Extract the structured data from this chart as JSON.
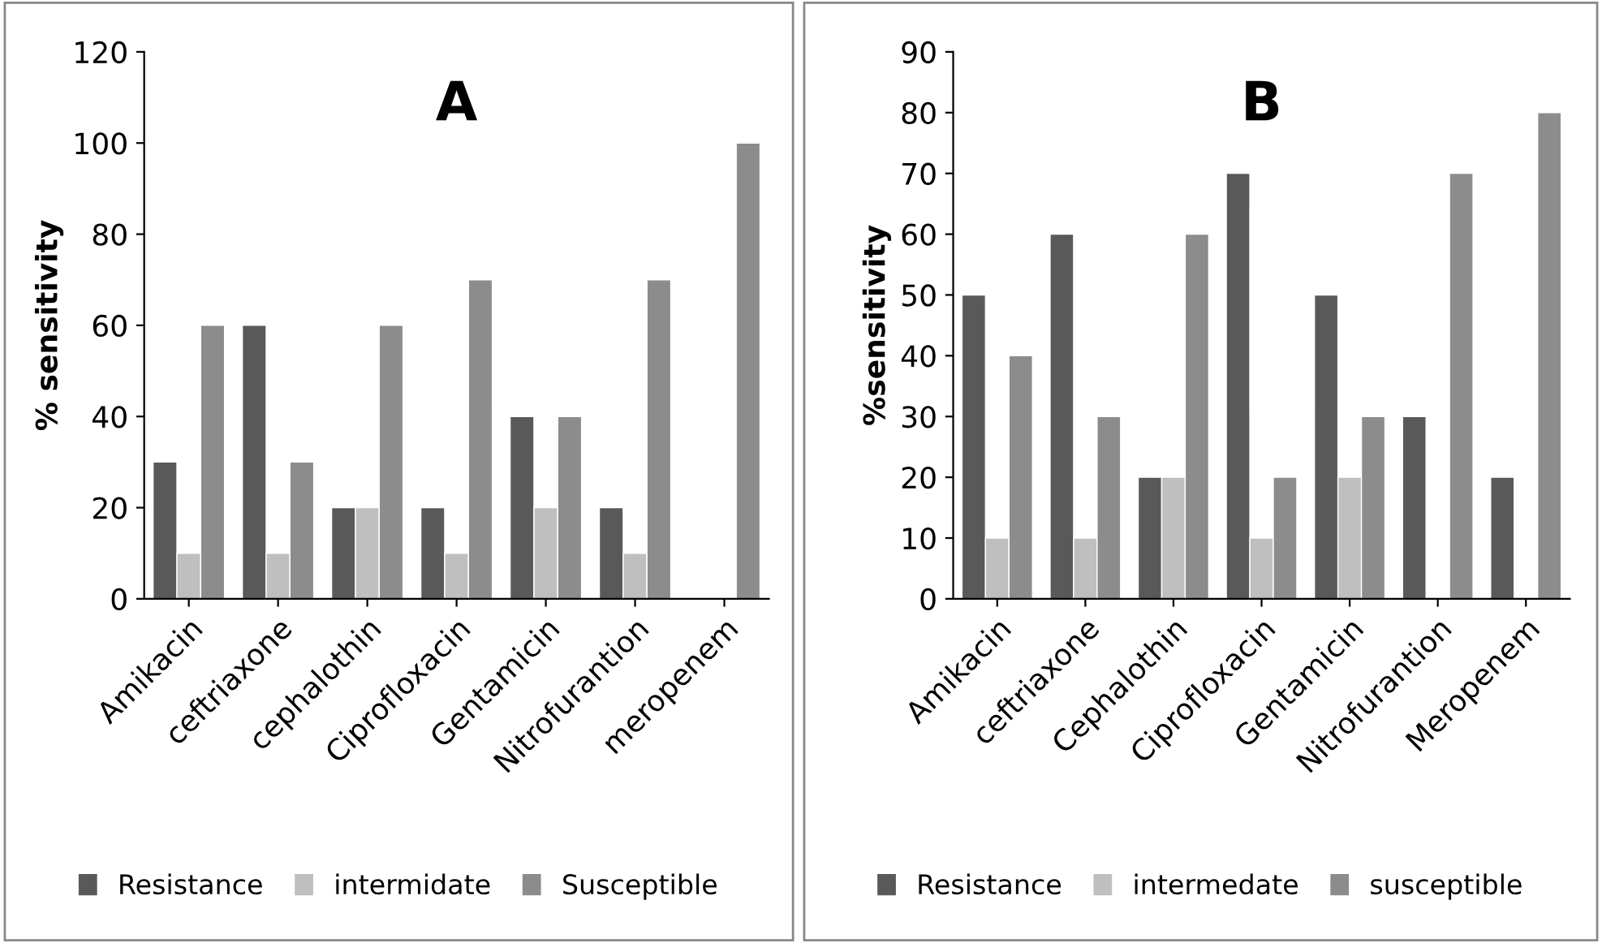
{
  "chart_data": [
    {
      "type": "bar",
      "title": "A",
      "ylabel": "% sensitivity",
      "categories": [
        "Amikacin",
        "ceftriaxone",
        "cephalothin",
        "Ciprofloxacin",
        "Gentamicin",
        "Nitrofurantion",
        "meropenem"
      ],
      "series": [
        {
          "name": "Resistance",
          "color": "#595959",
          "values": [
            30,
            60,
            20,
            20,
            40,
            20,
            null
          ]
        },
        {
          "name": "intermidate",
          "color": "#bfbfbf",
          "values": [
            10,
            10,
            20,
            10,
            20,
            10,
            null
          ]
        },
        {
          "name": "Susceptible",
          "color": "#8c8c8c",
          "values": [
            60,
            30,
            60,
            70,
            40,
            70,
            100
          ]
        }
      ],
      "ylim": [
        0,
        120
      ],
      "yticks": [
        0,
        20,
        40,
        60,
        80,
        100,
        120
      ],
      "grid": false,
      "legend": "bottom"
    },
    {
      "type": "bar",
      "title": "B",
      "ylabel": "%sensitivity",
      "categories": [
        "Amikacin",
        "ceftriaxone",
        "Cephalothin",
        "Ciprofloxacin",
        "Gentamicin",
        "Nitrofurantion",
        "Meropenem"
      ],
      "series": [
        {
          "name": "Resistance",
          "color": "#595959",
          "values": [
            50,
            60,
            20,
            70,
            50,
            30,
            20
          ]
        },
        {
          "name": "intermedate",
          "color": "#bfbfbf",
          "values": [
            10,
            10,
            20,
            10,
            20,
            null,
            null
          ]
        },
        {
          "name": "susceptible",
          "color": "#8c8c8c",
          "values": [
            40,
            30,
            60,
            20,
            30,
            70,
            80
          ]
        }
      ],
      "ylim": [
        0,
        90
      ],
      "yticks": [
        0,
        10,
        20,
        30,
        40,
        50,
        60,
        70,
        80,
        90
      ],
      "grid": false,
      "legend": "bottom"
    }
  ]
}
